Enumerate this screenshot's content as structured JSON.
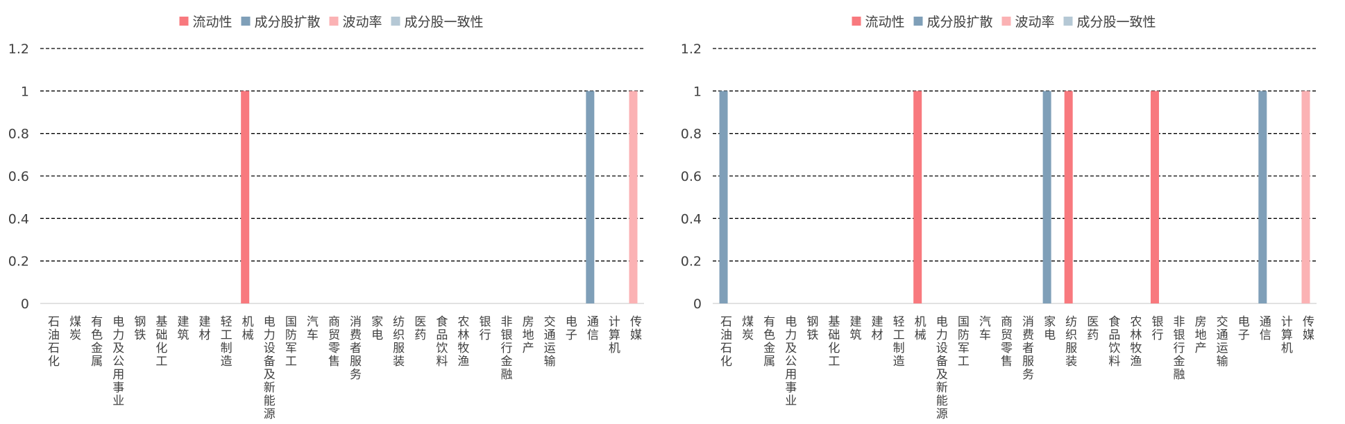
{
  "chart_data": [
    {
      "type": "bar",
      "categories": [
        "石油石化",
        "煤炭",
        "有色金属",
        "电力及公用事业",
        "钢铁",
        "基础化工",
        "建筑",
        "建材",
        "轻工制造",
        "机械",
        "电力设备及新能源",
        "国防军工",
        "汽车",
        "商贸零售",
        "消费者服务",
        "家电",
        "纺织服装",
        "医药",
        "食品饮料",
        "农林牧渔",
        "银行",
        "非银行金融",
        "房地产",
        "交通运输",
        "电子",
        "通信",
        "计算机",
        "传媒"
      ],
      "series": [
        {
          "name": "流动性",
          "color": "#F8797E",
          "values": [
            0,
            0,
            0,
            0,
            0,
            0,
            0,
            0,
            0,
            1,
            0,
            0,
            0,
            0,
            0,
            0,
            0,
            0,
            0,
            0,
            0,
            0,
            0,
            0,
            0,
            0,
            0,
            0
          ]
        },
        {
          "name": "成分股扩散",
          "color": "#7F9FB8",
          "values": [
            0,
            0,
            0,
            0,
            0,
            0,
            0,
            0,
            0,
            0,
            0,
            0,
            0,
            0,
            0,
            0,
            0,
            0,
            0,
            0,
            0,
            0,
            0,
            0,
            0,
            1,
            0,
            0
          ]
        },
        {
          "name": "波动率",
          "color": "#FBB2B4",
          "values": [
            0,
            0,
            0,
            0,
            0,
            0,
            0,
            0,
            0,
            0,
            0,
            0,
            0,
            0,
            0,
            0,
            0,
            0,
            0,
            0,
            0,
            0,
            0,
            0,
            0,
            0,
            0,
            1
          ]
        },
        {
          "name": "成分股一致性",
          "color": "#B5C8D5",
          "values": [
            0,
            0,
            0,
            0,
            0,
            0,
            0,
            0,
            0,
            0,
            0,
            0,
            0,
            0,
            0,
            0,
            0,
            0,
            0,
            0,
            0,
            0,
            0,
            0,
            0,
            0,
            0,
            0
          ]
        }
      ],
      "yticks": [
        "0",
        "0.2",
        "0.4",
        "0.6",
        "0.8",
        "1",
        "1.2"
      ],
      "ylim": [
        0,
        1.2
      ],
      "grid": true,
      "legend": "top-center"
    },
    {
      "type": "bar",
      "categories": [
        "石油石化",
        "煤炭",
        "有色金属",
        "电力及公用事业",
        "钢铁",
        "基础化工",
        "建筑",
        "建材",
        "轻工制造",
        "机械",
        "电力设备及新能源",
        "国防军工",
        "汽车",
        "商贸零售",
        "消费者服务",
        "家电",
        "纺织服装",
        "医药",
        "食品饮料",
        "农林牧渔",
        "银行",
        "非银行金融",
        "房地产",
        "交通运输",
        "电子",
        "通信",
        "计算机",
        "传媒"
      ],
      "series": [
        {
          "name": "流动性",
          "color": "#F8797E",
          "values": [
            0,
            0,
            0,
            0,
            0,
            0,
            0,
            0,
            0,
            1,
            0,
            0,
            0,
            0,
            0,
            0,
            1,
            0,
            0,
            0,
            1,
            0,
            0,
            0,
            0,
            0,
            0,
            0
          ]
        },
        {
          "name": "成分股扩散",
          "color": "#7F9FB8",
          "values": [
            1,
            0,
            0,
            0,
            0,
            0,
            0,
            0,
            0,
            0,
            0,
            0,
            0,
            0,
            0,
            1,
            0,
            0,
            0,
            0,
            0,
            0,
            0,
            0,
            0,
            1,
            0,
            0
          ]
        },
        {
          "name": "波动率",
          "color": "#FBB2B4",
          "values": [
            0,
            0,
            0,
            0,
            0,
            0,
            0,
            0,
            0,
            0,
            0,
            0,
            0,
            0,
            0,
            0,
            0,
            0,
            0,
            0,
            0,
            0,
            0,
            0,
            0,
            0,
            0,
            1
          ]
        },
        {
          "name": "成分股一致性",
          "color": "#B5C8D5",
          "values": [
            0,
            0,
            0,
            0,
            0,
            0,
            0,
            0,
            0,
            0,
            0,
            0,
            0,
            0,
            0,
            0,
            0,
            0,
            0,
            0,
            0,
            0,
            0,
            0,
            0,
            0,
            0,
            0
          ]
        }
      ],
      "yticks": [
        "0",
        "0.2",
        "0.4",
        "0.6",
        "0.8",
        "1",
        "1.2"
      ],
      "ylim": [
        0,
        1.2
      ],
      "grid": true,
      "legend": "top-center"
    }
  ]
}
